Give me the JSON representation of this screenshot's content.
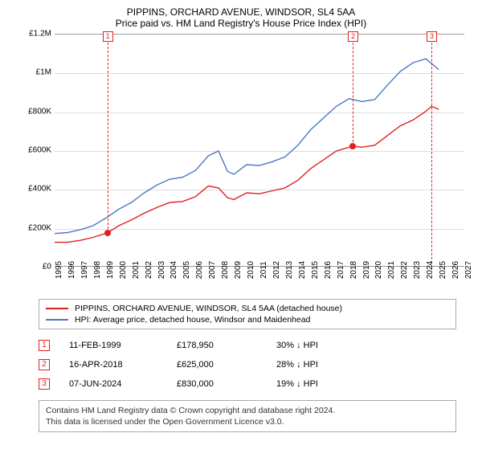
{
  "title": "PIPPINS, ORCHARD AVENUE, WINDSOR, SL4 5AA",
  "subtitle": "Price paid vs. HM Land Registry's House Price Index (HPI)",
  "chart": {
    "type": "line",
    "background_color": "#ffffff",
    "grid_color": "#dddddd",
    "xlim": [
      1995,
      2027
    ],
    "ylim": [
      0,
      1200000
    ],
    "ytick_step": 200000,
    "yticks": [
      "£0",
      "£200K",
      "£400K",
      "£600K",
      "£800K",
      "£1M",
      "£1.2M"
    ],
    "xticks": [
      1995,
      1996,
      1997,
      1998,
      1999,
      2000,
      2001,
      2002,
      2003,
      2004,
      2005,
      2006,
      2007,
      2008,
      2009,
      2010,
      2011,
      2012,
      2013,
      2014,
      2015,
      2016,
      2017,
      2018,
      2019,
      2020,
      2021,
      2022,
      2023,
      2024,
      2025,
      2026,
      2027
    ],
    "series": [
      {
        "name": "PIPPINS, ORCHARD AVENUE, WINDSOR, SL4 5AA (detached house)",
        "color": "#e02020",
        "line_width": 1.4,
        "data": [
          [
            1995,
            130000
          ],
          [
            1996,
            130000
          ],
          [
            1997,
            140000
          ],
          [
            1998,
            155000
          ],
          [
            1999.12,
            178950
          ],
          [
            2000,
            215000
          ],
          [
            2001,
            245000
          ],
          [
            2002,
            280000
          ],
          [
            2003,
            310000
          ],
          [
            2004,
            335000
          ],
          [
            2005,
            340000
          ],
          [
            2006,
            365000
          ],
          [
            2007,
            420000
          ],
          [
            2007.8,
            410000
          ],
          [
            2008.5,
            360000
          ],
          [
            2009,
            350000
          ],
          [
            2010,
            385000
          ],
          [
            2011,
            380000
          ],
          [
            2012,
            395000
          ],
          [
            2013,
            410000
          ],
          [
            2014,
            450000
          ],
          [
            2015,
            510000
          ],
          [
            2016,
            555000
          ],
          [
            2017,
            600000
          ],
          [
            2018.29,
            625000
          ],
          [
            2019,
            620000
          ],
          [
            2020,
            630000
          ],
          [
            2021,
            680000
          ],
          [
            2022,
            730000
          ],
          [
            2023,
            760000
          ],
          [
            2024,
            805000
          ],
          [
            2024.43,
            830000
          ],
          [
            2025,
            815000
          ]
        ]
      },
      {
        "name": "HPI: Average price, detached house, Windsor and Maidenhead",
        "color": "#4a78c4",
        "line_width": 1.4,
        "data": [
          [
            1995,
            175000
          ],
          [
            1996,
            180000
          ],
          [
            1997,
            195000
          ],
          [
            1998,
            215000
          ],
          [
            1999,
            255000
          ],
          [
            2000,
            300000
          ],
          [
            2001,
            335000
          ],
          [
            2002,
            385000
          ],
          [
            2003,
            425000
          ],
          [
            2004,
            455000
          ],
          [
            2005,
            465000
          ],
          [
            2006,
            500000
          ],
          [
            2007,
            575000
          ],
          [
            2007.8,
            600000
          ],
          [
            2008.5,
            495000
          ],
          [
            2009,
            480000
          ],
          [
            2010,
            530000
          ],
          [
            2011,
            525000
          ],
          [
            2012,
            545000
          ],
          [
            2013,
            570000
          ],
          [
            2014,
            630000
          ],
          [
            2015,
            710000
          ],
          [
            2016,
            770000
          ],
          [
            2017,
            830000
          ],
          [
            2018,
            870000
          ],
          [
            2019,
            855000
          ],
          [
            2020,
            865000
          ],
          [
            2021,
            940000
          ],
          [
            2022,
            1010000
          ],
          [
            2023,
            1055000
          ],
          [
            2024,
            1075000
          ],
          [
            2025,
            1020000
          ]
        ]
      }
    ],
    "transaction_markers": [
      {
        "index": "1",
        "x": 1999.12,
        "y": 178950
      },
      {
        "index": "2",
        "x": 2018.29,
        "y": 625000
      },
      {
        "index": "3",
        "x": 2024.43,
        "y": null
      }
    ]
  },
  "legend": {
    "items": [
      {
        "color": "#e02020",
        "label": "PIPPINS, ORCHARD AVENUE, WINDSOR, SL4 5AA (detached house)"
      },
      {
        "color": "#4a78c4",
        "label": "HPI: Average price, detached house, Windsor and Maidenhead"
      }
    ]
  },
  "transactions": [
    {
      "index": "1",
      "date": "11-FEB-1999",
      "price": "£178,950",
      "pct": "30% ↓ HPI"
    },
    {
      "index": "2",
      "date": "16-APR-2018",
      "price": "£625,000",
      "pct": "28% ↓ HPI"
    },
    {
      "index": "3",
      "date": "07-JUN-2024",
      "price": "£830,000",
      "pct": "19% ↓ HPI"
    }
  ],
  "footer_line1": "Contains HM Land Registry data © Crown copyright and database right 2024.",
  "footer_line2": "This data is licensed under the Open Government Licence v3.0."
}
